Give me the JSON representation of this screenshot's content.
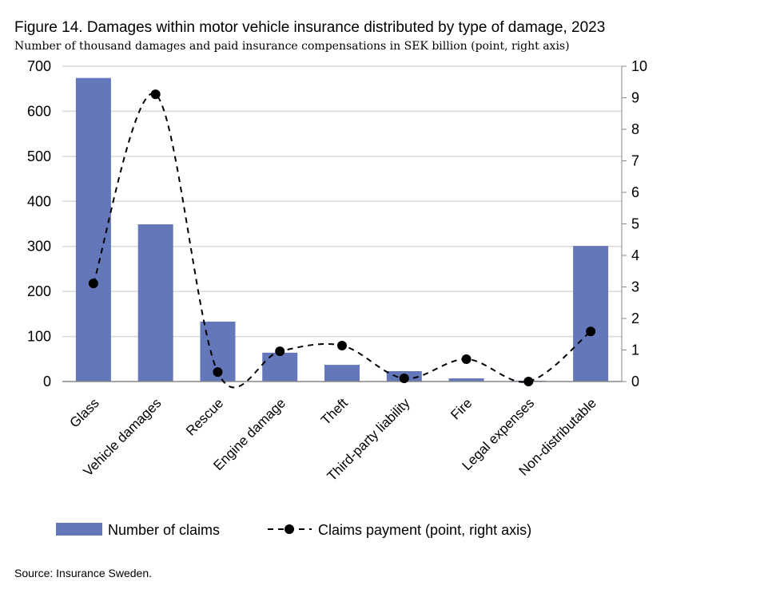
{
  "title": "Figure 14. Damages within motor vehicle insurance distributed by type of damage, 2023",
  "subtitle": "Number of thousand damages and paid insurance compensations in SEK billion (point, right axis)",
  "source": "Source: Insurance Sweden.",
  "chart_data": {
    "type": "bar",
    "categories": [
      "Glass",
      "Vehicle damages",
      "Rescue",
      "Engine damage",
      "Theft",
      "Third-party liability",
      "Fire",
      "Legal expenses",
      "Non-distributable"
    ],
    "series": [
      {
        "name": "Number of claims",
        "type": "bar",
        "axis": "left",
        "color": "#6577bb",
        "values": [
          674,
          349,
          133,
          64,
          37,
          23,
          7,
          2,
          301
        ]
      },
      {
        "name": "Claims payment (point, right axis)",
        "type": "line",
        "axis": "right",
        "style": "dashed, smoothed, black markers",
        "color": "#000000",
        "values": [
          3.11,
          9.11,
          0.3,
          0.96,
          1.14,
          0.1,
          0.71,
          0.0,
          1.59
        ]
      }
    ],
    "ylim": [
      0,
      700
    ],
    "yticks": [
      0,
      100,
      200,
      300,
      400,
      500,
      600,
      700
    ],
    "y2lim": [
      0,
      10
    ],
    "y2ticks": [
      0,
      1,
      2,
      3,
      4,
      5,
      6,
      7,
      8,
      9,
      10
    ],
    "grid": true,
    "legend": "bottom"
  }
}
